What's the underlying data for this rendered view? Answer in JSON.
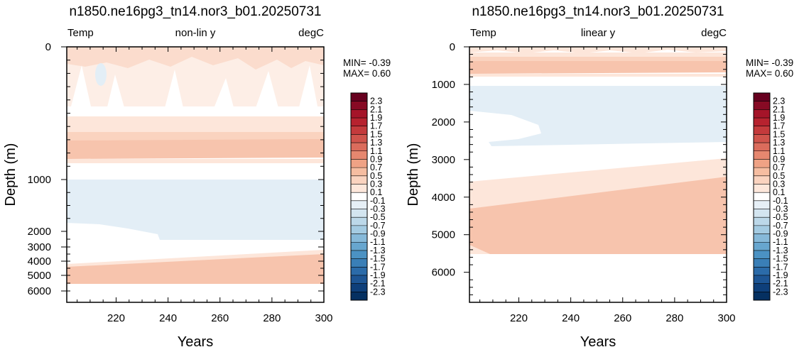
{
  "chart_data": [
    {
      "type": "heatmap",
      "title": "n1850.ne16pg3_tn14.nor3_b01.20250731",
      "left_label": "Temp",
      "center_label": "non-lin y",
      "right_label": "degC",
      "xlabel": "Years",
      "ylabel": "Depth (m)",
      "xlim": [
        201,
        300
      ],
      "x_ticks": [
        "220",
        "240",
        "260",
        "280",
        "300"
      ],
      "y_scale": "non-linear (stretched upper ocean)",
      "y_ticks": [
        "0",
        "1000",
        "2000",
        "3000",
        "4000",
        "5000",
        "6000"
      ],
      "stats": {
        "min": "MIN= -0.39",
        "max": "MAX=  0.60"
      },
      "bands": [
        {
          "depth": [
            0,
            350
          ],
          "level": 0.1,
          "note": "patchy warm/neutral surface layer"
        },
        {
          "depth": [
            350,
            510
          ],
          "level": 0.1
        },
        {
          "depth": [
            510,
            650
          ],
          "level": 0.3
        },
        {
          "depth": [
            650,
            900
          ],
          "level": 0.5
        },
        {
          "depth": [
            900,
            1000
          ],
          "level": 0.0
        },
        {
          "depth": [
            1000,
            2500
          ],
          "level": -0.1
        },
        {
          "depth": [
            2500,
            3300
          ],
          "level": 0.0
        },
        {
          "depth": [
            3300,
            4000
          ],
          "level": 0.1
        },
        {
          "depth": [
            4000,
            5400
          ],
          "level": 0.3
        },
        {
          "depth": [
            5400,
            6500
          ],
          "level": 0.0
        }
      ]
    },
    {
      "type": "heatmap",
      "title": "n1850.ne16pg3_tn14.nor3_b01.20250731",
      "left_label": "Temp",
      "center_label": "linear y",
      "right_label": "degC",
      "xlabel": "Years",
      "ylabel": "Depth (m)",
      "xlim": [
        201,
        300
      ],
      "x_ticks": [
        "220",
        "240",
        "260",
        "280",
        "300"
      ],
      "y_scale": "linear",
      "ylim": [
        0,
        6800
      ],
      "y_ticks": [
        "0",
        "1000",
        "2000",
        "3000",
        "4000",
        "5000",
        "6000"
      ],
      "stats": {
        "min": "MIN= -0.39",
        "max": "MAX=  0.60"
      },
      "bands": [
        {
          "depth": [
            0,
            200
          ],
          "level": 0.1
        },
        {
          "depth": [
            200,
            400
          ],
          "level": 0.3
        },
        {
          "depth": [
            400,
            750
          ],
          "level": 0.5
        },
        {
          "depth": [
            750,
            1000
          ],
          "level": 0.0
        },
        {
          "depth": [
            1000,
            2600
          ],
          "level": -0.1
        },
        {
          "depth": [
            2600,
            3300
          ],
          "level": 0.0
        },
        {
          "depth": [
            3300,
            4200
          ],
          "level": 0.1
        },
        {
          "depth": [
            4200,
            5500
          ],
          "level": 0.3
        },
        {
          "depth": [
            5500,
            6800
          ],
          "level": 0.0
        }
      ]
    }
  ],
  "colorbar": {
    "labels": [
      "2.3",
      "2.1",
      "1.9",
      "1.7",
      "1.5",
      "1.3",
      "1.1",
      "0.9",
      "0.7",
      "0.5",
      "0.3",
      "0.1",
      "-0.1",
      "-0.3",
      "-0.5",
      "-0.7",
      "-0.9",
      "-1.1",
      "-1.3",
      "-1.5",
      "-1.7",
      "-1.9",
      "-2.1",
      "-2.3"
    ],
    "colors": [
      "#67001f",
      "#870a24",
      "#a51429",
      "#b7222f",
      "#c43a3c",
      "#d0544c",
      "#db6c5c",
      "#e6876f",
      "#efa285",
      "#f6bda1",
      "#fad3bf",
      "#fde7db",
      "#ffffff",
      "#e6eff6",
      "#d3e5f0",
      "#bcd8e9",
      "#a4cbe2",
      "#86b9d9",
      "#67a6cf",
      "#4b92c3",
      "#3a7fb7",
      "#2b6ba9",
      "#1d5594",
      "#0e3f7a",
      "#053061"
    ]
  },
  "fill_colors": {
    "w1": "#fde6da",
    "w2": "#fad3bf",
    "w3": "#f7c4ad",
    "c1": "#e3eef6"
  }
}
